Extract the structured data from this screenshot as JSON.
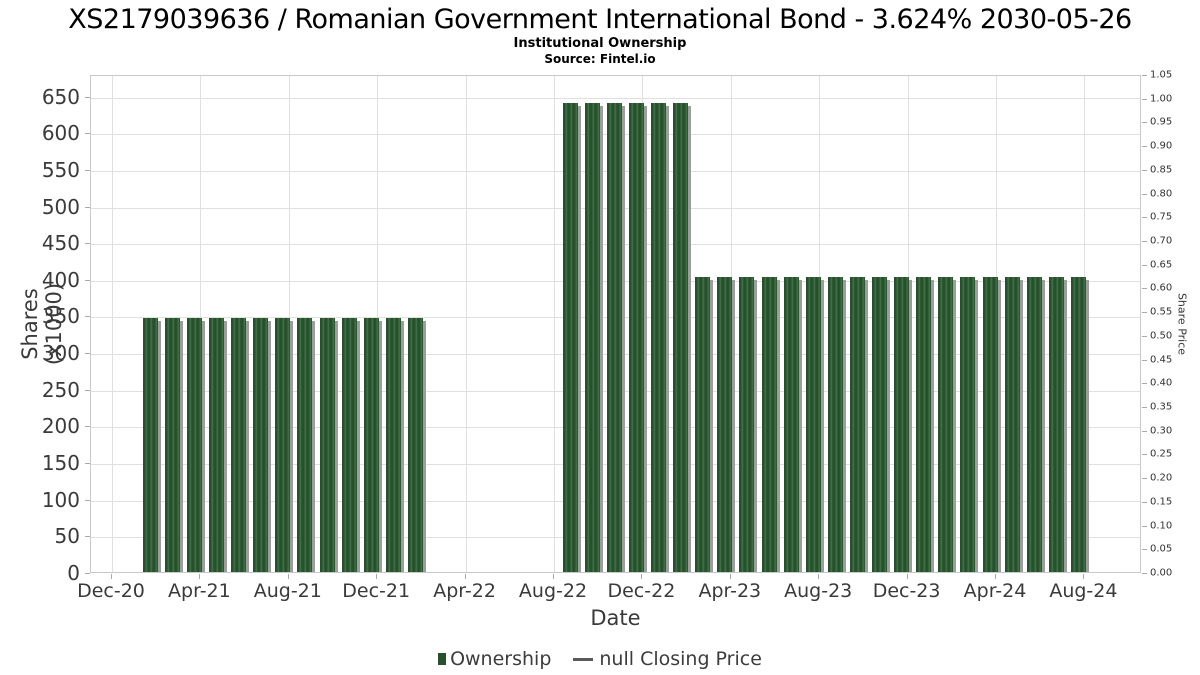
{
  "header": {
    "title": "XS2179039636 / Romanian Government International Bond - 3.624% 2030-05-26",
    "subtitle": "Institutional Ownership",
    "source": "Source: Fintel.io"
  },
  "legend": {
    "items": [
      {
        "label": "Ownership",
        "swatch": "square",
        "color": "#27512d"
      },
      {
        "label": "null Closing Price",
        "swatch": "line",
        "color": "#5a5a5a"
      }
    ]
  },
  "chart_data": {
    "type": "bar",
    "title": "XS2179039636 / Romanian Government International Bond - 3.624% 2030-05-26",
    "subtitle": "Institutional Ownership",
    "source": "Source: Fintel.io",
    "xlabel": "Date",
    "ylabel_left": "Shares (x1000)",
    "ylabel_right": "Share Price",
    "ylim_left": [
      0,
      680
    ],
    "ylim_right": [
      0,
      1.05
    ],
    "grid": true,
    "legend_position": "bottom-center",
    "bar_color": "#2d5833",
    "bar_shadow_color": "#9d9d9d",
    "yticks_left": [
      0,
      50,
      100,
      150,
      200,
      250,
      300,
      350,
      400,
      450,
      500,
      550,
      600,
      650
    ],
    "yticks_right": [
      "0.00",
      "0.05",
      "0.10",
      "0.15",
      "0.20",
      "0.25",
      "0.30",
      "0.35",
      "0.40",
      "0.45",
      "0.50",
      "0.55",
      "0.60",
      "0.65",
      "0.70",
      "0.75",
      "0.80",
      "0.85",
      "0.90",
      "0.95",
      "1.00",
      "1.05"
    ],
    "xticks": [
      "Dec-20",
      "Apr-21",
      "Aug-21",
      "Dec-21",
      "Apr-22",
      "Aug-22",
      "Dec-22",
      "Apr-23",
      "Aug-23",
      "Dec-23",
      "Apr-24",
      "Aug-24"
    ],
    "months": [
      "Dec-20",
      "Jan-21",
      "Feb-21",
      "Mar-21",
      "Apr-21",
      "May-21",
      "Jun-21",
      "Jul-21",
      "Aug-21",
      "Sep-21",
      "Oct-21",
      "Nov-21",
      "Dec-21",
      "Jan-22",
      "Feb-22",
      "Mar-22",
      "Apr-22",
      "May-22",
      "Jun-22",
      "Jul-22",
      "Aug-22",
      "Sep-22",
      "Oct-22",
      "Nov-22",
      "Dec-22",
      "Jan-23",
      "Feb-23",
      "Mar-23",
      "Apr-23",
      "May-23",
      "Jun-23",
      "Jul-23",
      "Aug-23",
      "Sep-23",
      "Oct-23",
      "Nov-23",
      "Dec-23",
      "Jan-24",
      "Feb-24",
      "Mar-24",
      "Apr-24",
      "May-24",
      "Jun-24",
      "Jul-24",
      "Aug-24"
    ],
    "series": [
      {
        "name": "Ownership",
        "type": "bar",
        "values": [
          null,
          null,
          349,
          349,
          349,
          349,
          349,
          349,
          349,
          349,
          349,
          349,
          349,
          349,
          349,
          null,
          null,
          null,
          null,
          null,
          null,
          643,
          643,
          643,
          643,
          643,
          643,
          405,
          405,
          405,
          405,
          405,
          405,
          405,
          405,
          405,
          405,
          405,
          405,
          405,
          405,
          405,
          405,
          405,
          405
        ]
      },
      {
        "name": "null Closing Price",
        "type": "line",
        "values": []
      }
    ]
  }
}
